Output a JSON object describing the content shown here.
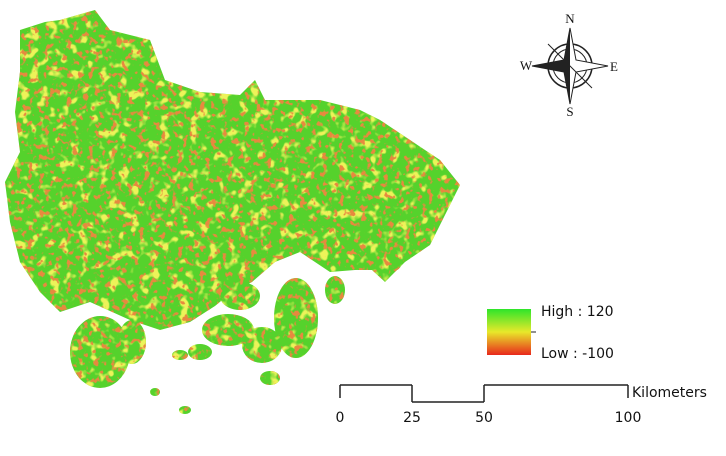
{
  "compass": {
    "north": "N",
    "south": "S",
    "west": "W",
    "east": "E"
  },
  "legend": {
    "high": "High : 120",
    "low": "Low : -100"
  },
  "scale_bar": {
    "ticks": [
      0,
      25,
      50,
      100
    ],
    "unit": "Kilometers"
  }
}
